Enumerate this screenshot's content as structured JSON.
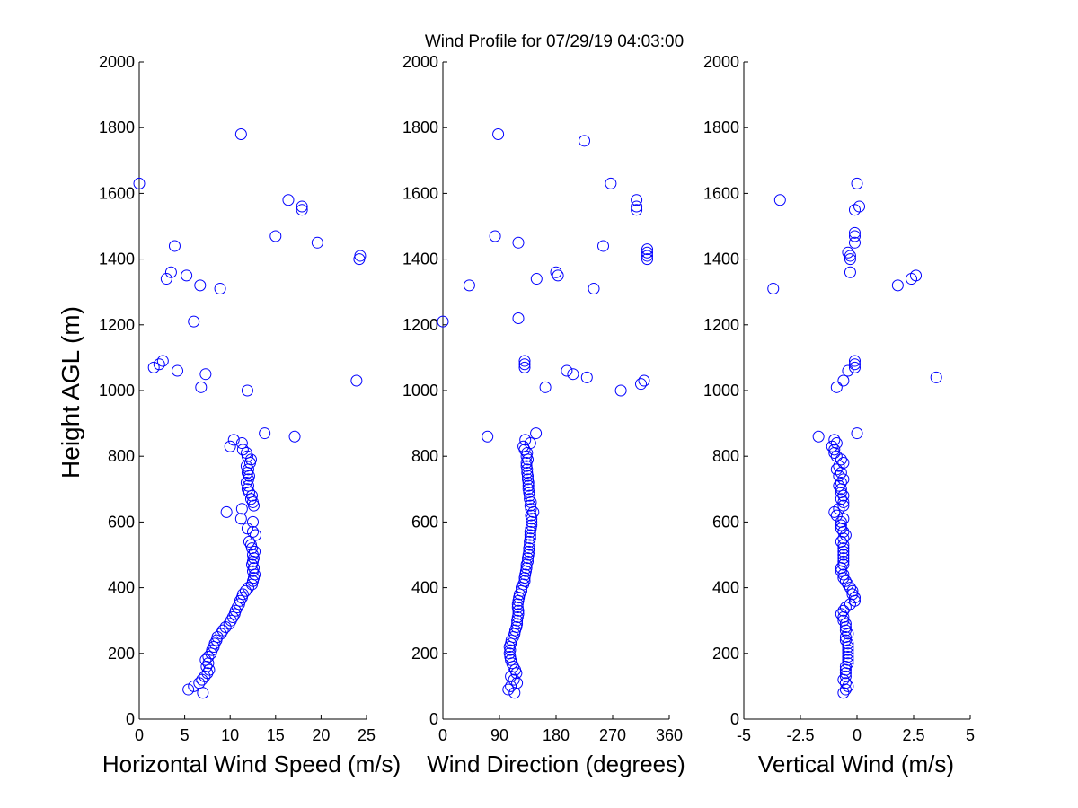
{
  "title": "Wind Profile for  07/29/19 04:03:00",
  "chart_data": [
    {
      "type": "scatter",
      "xlabel": "Horizontal Wind Speed (m/s)",
      "ylabel": "Height AGL (m)",
      "xlim": [
        0,
        25
      ],
      "ylim": [
        0,
        2000
      ],
      "xticks": [
        "0",
        "5",
        "10",
        "15",
        "20",
        "25"
      ],
      "yticks": [
        "0",
        "200",
        "400",
        "600",
        "800",
        "1000",
        "1200",
        "1400",
        "1600",
        "1800",
        "2000"
      ],
      "marker_color": "#0000ff",
      "grid": false,
      "points": [
        [
          7.0,
          80
        ],
        [
          5.4,
          90
        ],
        [
          6.0,
          100
        ],
        [
          6.6,
          110
        ],
        [
          6.9,
          120
        ],
        [
          7.2,
          130
        ],
        [
          7.5,
          140
        ],
        [
          7.7,
          150
        ],
        [
          7.4,
          160
        ],
        [
          7.6,
          170
        ],
        [
          7.3,
          180
        ],
        [
          7.6,
          190
        ],
        [
          7.9,
          200
        ],
        [
          8.0,
          210
        ],
        [
          8.2,
          220
        ],
        [
          8.3,
          230
        ],
        [
          8.5,
          240
        ],
        [
          8.6,
          250
        ],
        [
          9.0,
          260
        ],
        [
          9.2,
          270
        ],
        [
          9.5,
          280
        ],
        [
          9.9,
          290
        ],
        [
          10.1,
          300
        ],
        [
          10.3,
          310
        ],
        [
          10.5,
          320
        ],
        [
          10.6,
          330
        ],
        [
          10.8,
          340
        ],
        [
          11.0,
          350
        ],
        [
          11.1,
          360
        ],
        [
          11.3,
          370
        ],
        [
          11.4,
          380
        ],
        [
          11.7,
          390
        ],
        [
          12.0,
          400
        ],
        [
          12.4,
          410
        ],
        [
          12.5,
          420
        ],
        [
          12.6,
          430
        ],
        [
          12.7,
          440
        ],
        [
          12.5,
          450
        ],
        [
          12.6,
          460
        ],
        [
          12.4,
          470
        ],
        [
          12.5,
          480
        ],
        [
          12.6,
          490
        ],
        [
          12.5,
          500
        ],
        [
          12.7,
          510
        ],
        [
          12.4,
          520
        ],
        [
          12.3,
          530
        ],
        [
          12.1,
          540
        ],
        [
          12.8,
          560
        ],
        [
          12.5,
          570
        ],
        [
          11.9,
          580
        ],
        [
          12.5,
          600
        ],
        [
          11.2,
          610
        ],
        [
          9.6,
          630
        ],
        [
          11.3,
          640
        ],
        [
          12.6,
          650
        ],
        [
          12.5,
          660
        ],
        [
          12.3,
          670
        ],
        [
          12.4,
          680
        ],
        [
          12.1,
          690
        ],
        [
          11.9,
          700
        ],
        [
          12.0,
          710
        ],
        [
          11.8,
          720
        ],
        [
          12.0,
          730
        ],
        [
          12.1,
          740
        ],
        [
          11.9,
          750
        ],
        [
          12.0,
          760
        ],
        [
          11.8,
          770
        ],
        [
          12.2,
          780
        ],
        [
          12.3,
          790
        ],
        [
          11.9,
          800
        ],
        [
          11.8,
          810
        ],
        [
          11.4,
          820
        ],
        [
          10.0,
          830
        ],
        [
          11.3,
          840
        ],
        [
          10.4,
          850
        ],
        [
          17.1,
          860
        ],
        [
          13.8,
          870
        ],
        [
          11.9,
          1000
        ],
        [
          6.8,
          1010
        ],
        [
          23.9,
          1030
        ],
        [
          7.3,
          1050
        ],
        [
          4.2,
          1060
        ],
        [
          1.6,
          1070
        ],
        [
          2.2,
          1080
        ],
        [
          2.6,
          1090
        ],
        [
          6.0,
          1210
        ],
        [
          8.9,
          1310
        ],
        [
          6.7,
          1320
        ],
        [
          3.0,
          1340
        ],
        [
          5.2,
          1350
        ],
        [
          3.5,
          1360
        ],
        [
          24.2,
          1400
        ],
        [
          24.3,
          1410
        ],
        [
          3.9,
          1440
        ],
        [
          19.6,
          1450
        ],
        [
          15.0,
          1470
        ],
        [
          17.9,
          1550
        ],
        [
          17.9,
          1560
        ],
        [
          16.4,
          1580
        ],
        [
          0.0,
          1630
        ],
        [
          11.2,
          1780
        ]
      ]
    },
    {
      "type": "scatter",
      "xlabel": "Wind Direction (degrees)",
      "ylabel": "",
      "xlim": [
        0,
        360
      ],
      "ylim": [
        0,
        2000
      ],
      "xticks": [
        "0",
        "90",
        "180",
        "270",
        "360"
      ],
      "yticks": [
        "0",
        "200",
        "400",
        "600",
        "800",
        "1000",
        "1200",
        "1400",
        "1600",
        "1800",
        "2000"
      ],
      "marker_color": "#0000ff",
      "grid": false,
      "points": [
        [
          114,
          80
        ],
        [
          104,
          90
        ],
        [
          108,
          100
        ],
        [
          118,
          110
        ],
        [
          113,
          120
        ],
        [
          108,
          130
        ],
        [
          117,
          140
        ],
        [
          115,
          150
        ],
        [
          112,
          160
        ],
        [
          110,
          170
        ],
        [
          108,
          180
        ],
        [
          107,
          190
        ],
        [
          106,
          200
        ],
        [
          107,
          210
        ],
        [
          106,
          220
        ],
        [
          108,
          230
        ],
        [
          109,
          240
        ],
        [
          112,
          250
        ],
        [
          114,
          260
        ],
        [
          115,
          270
        ],
        [
          117,
          280
        ],
        [
          118,
          290
        ],
        [
          118,
          300
        ],
        [
          119,
          310
        ],
        [
          120,
          320
        ],
        [
          120,
          330
        ],
        [
          119,
          340
        ],
        [
          119,
          350
        ],
        [
          120,
          360
        ],
        [
          121,
          370
        ],
        [
          122,
          380
        ],
        [
          125,
          390
        ],
        [
          125,
          400
        ],
        [
          128,
          410
        ],
        [
          130,
          420
        ],
        [
          130,
          430
        ],
        [
          131,
          440
        ],
        [
          132,
          450
        ],
        [
          133,
          460
        ],
        [
          133,
          470
        ],
        [
          135,
          480
        ],
        [
          135,
          490
        ],
        [
          136,
          500
        ],
        [
          137,
          510
        ],
        [
          137,
          520
        ],
        [
          138,
          530
        ],
        [
          138,
          540
        ],
        [
          139,
          550
        ],
        [
          139,
          560
        ],
        [
          139,
          570
        ],
        [
          140,
          580
        ],
        [
          141,
          590
        ],
        [
          141,
          600
        ],
        [
          141,
          610
        ],
        [
          140,
          620
        ],
        [
          144,
          630
        ],
        [
          140,
          640
        ],
        [
          139,
          650
        ],
        [
          140,
          660
        ],
        [
          138,
          670
        ],
        [
          138,
          680
        ],
        [
          137,
          690
        ],
        [
          136,
          700
        ],
        [
          136,
          710
        ],
        [
          136,
          720
        ],
        [
          135,
          730
        ],
        [
          135,
          740
        ],
        [
          134,
          750
        ],
        [
          134,
          760
        ],
        [
          133,
          770
        ],
        [
          133,
          780
        ],
        [
          135,
          790
        ],
        [
          133,
          800
        ],
        [
          134,
          810
        ],
        [
          130,
          820
        ],
        [
          128,
          830
        ],
        [
          139,
          840
        ],
        [
          131,
          850
        ],
        [
          71,
          860
        ],
        [
          148,
          870
        ],
        [
          283,
          1000
        ],
        [
          163,
          1010
        ],
        [
          315,
          1020
        ],
        [
          320,
          1030
        ],
        [
          229,
          1040
        ],
        [
          207,
          1050
        ],
        [
          197,
          1060
        ],
        [
          130,
          1070
        ],
        [
          130,
          1080
        ],
        [
          130,
          1090
        ],
        [
          120,
          1220
        ],
        [
          0,
          1210
        ],
        [
          240,
          1310
        ],
        [
          42,
          1320
        ],
        [
          149,
          1340
        ],
        [
          183,
          1350
        ],
        [
          180,
          1360
        ],
        [
          325,
          1400
        ],
        [
          325,
          1410
        ],
        [
          325,
          1420
        ],
        [
          325,
          1430
        ],
        [
          255,
          1440
        ],
        [
          120,
          1450
        ],
        [
          83,
          1470
        ],
        [
          308,
          1550
        ],
        [
          308,
          1560
        ],
        [
          308,
          1580
        ],
        [
          267,
          1630
        ],
        [
          225,
          1760
        ],
        [
          88,
          1780
        ]
      ]
    },
    {
      "type": "scatter",
      "xlabel": "Vertical Wind (m/s)",
      "ylabel": "",
      "xlim": [
        -5,
        5
      ],
      "ylim": [
        0,
        2000
      ],
      "xticks": [
        "-5",
        "-2.5",
        "0",
        "2.5",
        "5"
      ],
      "yticks": [
        "0",
        "200",
        "400",
        "600",
        "800",
        "1000",
        "1200",
        "1400",
        "1600",
        "1800",
        "2000"
      ],
      "marker_color": "#0000ff",
      "grid": false,
      "points": [
        [
          -0.6,
          80
        ],
        [
          -0.5,
          90
        ],
        [
          -0.4,
          100
        ],
        [
          -0.5,
          110
        ],
        [
          -0.6,
          120
        ],
        [
          -0.5,
          130
        ],
        [
          -0.5,
          140
        ],
        [
          -0.5,
          150
        ],
        [
          -0.5,
          160
        ],
        [
          -0.4,
          170
        ],
        [
          -0.4,
          180
        ],
        [
          -0.4,
          190
        ],
        [
          -0.4,
          200
        ],
        [
          -0.4,
          210
        ],
        [
          -0.4,
          220
        ],
        [
          -0.4,
          230
        ],
        [
          -0.5,
          240
        ],
        [
          -0.5,
          250
        ],
        [
          -0.4,
          260
        ],
        [
          -0.5,
          270
        ],
        [
          -0.5,
          280
        ],
        [
          -0.5,
          290
        ],
        [
          -0.6,
          300
        ],
        [
          -0.6,
          310
        ],
        [
          -0.7,
          320
        ],
        [
          -0.6,
          330
        ],
        [
          -0.5,
          340
        ],
        [
          -0.3,
          350
        ],
        [
          -0.1,
          360
        ],
        [
          -0.1,
          370
        ],
        [
          -0.2,
          380
        ],
        [
          -0.2,
          390
        ],
        [
          -0.3,
          400
        ],
        [
          -0.4,
          410
        ],
        [
          -0.5,
          420
        ],
        [
          -0.6,
          430
        ],
        [
          -0.6,
          440
        ],
        [
          -0.7,
          450
        ],
        [
          -0.7,
          460
        ],
        [
          -0.6,
          470
        ],
        [
          -0.6,
          480
        ],
        [
          -0.6,
          490
        ],
        [
          -0.6,
          500
        ],
        [
          -0.6,
          510
        ],
        [
          -0.6,
          520
        ],
        [
          -0.6,
          530
        ],
        [
          -0.7,
          540
        ],
        [
          -0.6,
          550
        ],
        [
          -0.5,
          560
        ],
        [
          -0.6,
          570
        ],
        [
          -0.7,
          580
        ],
        [
          -0.7,
          590
        ],
        [
          -0.7,
          600
        ],
        [
          -0.6,
          610
        ],
        [
          -0.9,
          620
        ],
        [
          -1.0,
          630
        ],
        [
          -0.8,
          640
        ],
        [
          -0.6,
          650
        ],
        [
          -0.6,
          660
        ],
        [
          -0.7,
          670
        ],
        [
          -0.6,
          680
        ],
        [
          -0.7,
          690
        ],
        [
          -0.7,
          700
        ],
        [
          -0.8,
          710
        ],
        [
          -0.7,
          720
        ],
        [
          -0.6,
          730
        ],
        [
          -0.8,
          740
        ],
        [
          -0.7,
          750
        ],
        [
          -0.9,
          760
        ],
        [
          -0.8,
          770
        ],
        [
          -0.6,
          780
        ],
        [
          -0.7,
          790
        ],
        [
          -0.9,
          800
        ],
        [
          -1.0,
          810
        ],
        [
          -1.0,
          820
        ],
        [
          -1.1,
          830
        ],
        [
          -0.9,
          840
        ],
        [
          -1.0,
          850
        ],
        [
          -1.7,
          860
        ],
        [
          0.0,
          870
        ],
        [
          -0.9,
          1010
        ],
        [
          -0.6,
          1030
        ],
        [
          3.5,
          1040
        ],
        [
          -0.4,
          1060
        ],
        [
          -0.1,
          1070
        ],
        [
          -0.1,
          1080
        ],
        [
          -0.1,
          1090
        ],
        [
          -3.7,
          1310
        ],
        [
          1.8,
          1320
        ],
        [
          2.4,
          1340
        ],
        [
          2.6,
          1350
        ],
        [
          -0.3,
          1360
        ],
        [
          -0.3,
          1400
        ],
        [
          -0.3,
          1410
        ],
        [
          -0.4,
          1420
        ],
        [
          -0.1,
          1450
        ],
        [
          -0.1,
          1470
        ],
        [
          -0.1,
          1480
        ],
        [
          -0.1,
          1550
        ],
        [
          0.1,
          1560
        ],
        [
          -3.4,
          1580
        ],
        [
          0.0,
          1630
        ]
      ]
    }
  ]
}
